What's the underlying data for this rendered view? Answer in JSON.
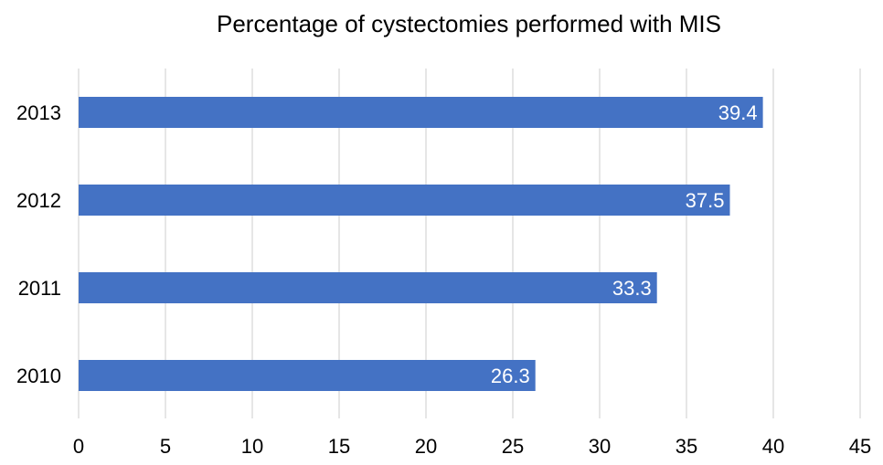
{
  "chart_data": {
    "type": "bar",
    "orientation": "horizontal",
    "title": "Percentage of cystectomies performed with MIS",
    "xlabel": "",
    "ylabel": "",
    "categories": [
      "2010",
      "2011",
      "2012",
      "2013"
    ],
    "values": [
      26.3,
      33.3,
      37.5,
      39.4
    ],
    "data_labels": [
      "26.3",
      "33.3",
      "37.5",
      "39.4"
    ],
    "xlim": [
      0,
      45
    ],
    "xticks": [
      "0",
      "5",
      "10",
      "15",
      "20",
      "25",
      "30",
      "35",
      "40",
      "45"
    ],
    "grid": true,
    "legend": "none",
    "bar_color": "#4472C4",
    "data_label_color": "#FFFFFF"
  }
}
